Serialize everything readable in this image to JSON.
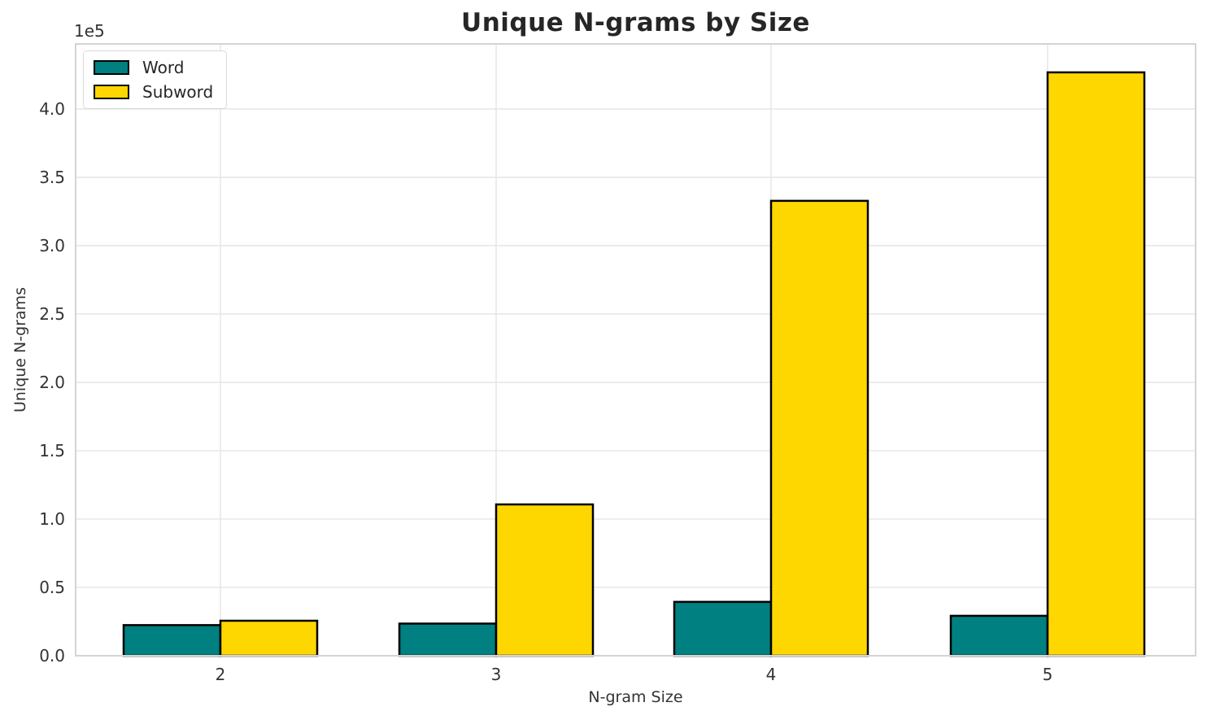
{
  "chart_data": {
    "type": "bar",
    "title": "Unique N-grams by Size",
    "xlabel": "N-gram Size",
    "ylabel": "Unique N-grams",
    "y_offset_label": "1e5",
    "categories": [
      "2",
      "3",
      "4",
      "5"
    ],
    "series": [
      {
        "name": "Word",
        "color": "#008080",
        "values": [
          22400,
          23500,
          39400,
          29200
        ]
      },
      {
        "name": "Subword",
        "color": "#FFD700",
        "values": [
          25600,
          110700,
          332800,
          426800
        ]
      }
    ],
    "ylim": [
      0,
      447600
    ],
    "y_ticks": [
      0,
      50000,
      100000,
      150000,
      200000,
      250000,
      300000,
      350000,
      400000
    ],
    "y_tick_labels": [
      "0.0",
      "0.5",
      "1.0",
      "1.5",
      "2.0",
      "2.5",
      "3.0",
      "3.5",
      "4.0"
    ],
    "grid": true,
    "legend_position": "upper left",
    "bar_edge_color": "#000000",
    "bar_width_fraction": 0.35
  }
}
